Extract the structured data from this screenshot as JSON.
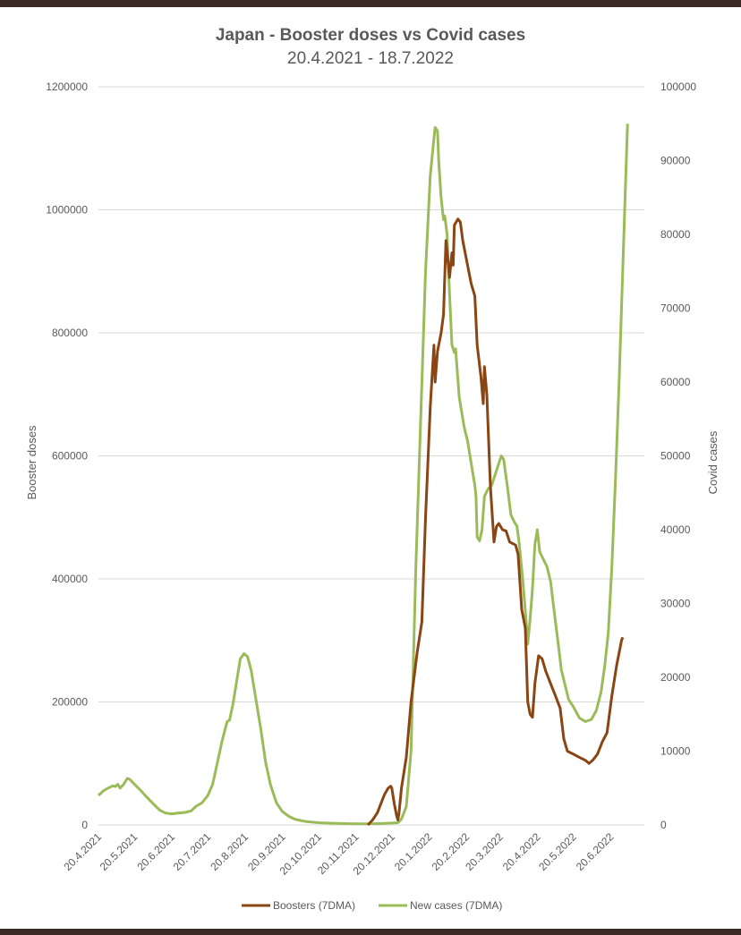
{
  "chart_data": {
    "type": "line",
    "title": "Japan - Booster doses vs Covid cases",
    "subtitle": "20.4.2021 - 18.7.2022",
    "ylabel": "Booster doses",
    "y2label": "Covid cases",
    "ylim": [
      0,
      1200000
    ],
    "y2lim": [
      0,
      100000
    ],
    "yticks": [
      "0",
      "200000",
      "400000",
      "600000",
      "800000",
      "1000000",
      "1200000"
    ],
    "y2ticks": [
      "0",
      "10000",
      "20000",
      "30000",
      "40000",
      "50000",
      "60000",
      "70000",
      "80000",
      "90000",
      "100000"
    ],
    "xlim": [
      "2021-04-20",
      "2022-07-18"
    ],
    "xticks": [
      "20.4.2021",
      "20.5.2021",
      "20.6.2021",
      "20.7.2021",
      "20.8.2021",
      "20.9.2021",
      "20.10.2021",
      "20.11.2021",
      "20.12.2021",
      "20.1.2022",
      "20.2.2022",
      "20.3.2022",
      "20.4.2022",
      "20.5.2022",
      "20.6.2022"
    ],
    "xtick_dates": [
      "2021-04-20",
      "2021-05-20",
      "2021-06-20",
      "2021-07-20",
      "2021-08-20",
      "2021-09-20",
      "2021-10-20",
      "2021-11-20",
      "2021-12-20",
      "2022-01-20",
      "2022-02-20",
      "2022-03-20",
      "2022-04-20",
      "2022-05-20",
      "2022-06-20"
    ],
    "grid": true,
    "legend_position": "bottom",
    "series": [
      {
        "name": "Boosters (7DMA)",
        "axis": "left",
        "color": "#8B4513",
        "points": [
          [
            "2021-11-30",
            0
          ],
          [
            "2021-12-04",
            8000
          ],
          [
            "2021-12-08",
            20000
          ],
          [
            "2021-12-11",
            35000
          ],
          [
            "2021-12-14",
            50000
          ],
          [
            "2021-12-17",
            60000
          ],
          [
            "2021-12-19",
            63000
          ],
          [
            "2021-12-20",
            60000
          ],
          [
            "2021-12-22",
            35000
          ],
          [
            "2021-12-24",
            15000
          ],
          [
            "2021-12-25",
            8000
          ],
          [
            "2021-12-26",
            20000
          ],
          [
            "2021-12-28",
            60000
          ],
          [
            "2022-01-01",
            110000
          ],
          [
            "2022-01-05",
            200000
          ],
          [
            "2022-01-10",
            280000
          ],
          [
            "2022-01-14",
            330000
          ],
          [
            "2022-01-17",
            500000
          ],
          [
            "2022-01-21",
            680000
          ],
          [
            "2022-01-24",
            780000
          ],
          [
            "2022-01-25",
            720000
          ],
          [
            "2022-01-27",
            770000
          ],
          [
            "2022-01-30",
            800000
          ],
          [
            "2022-02-01",
            830000
          ],
          [
            "2022-02-03",
            950000
          ],
          [
            "2022-02-06",
            890000
          ],
          [
            "2022-02-08",
            930000
          ],
          [
            "2022-02-09",
            910000
          ],
          [
            "2022-02-10",
            975000
          ],
          [
            "2022-02-13",
            985000
          ],
          [
            "2022-02-15",
            980000
          ],
          [
            "2022-02-17",
            950000
          ],
          [
            "2022-02-20",
            920000
          ],
          [
            "2022-02-24",
            880000
          ],
          [
            "2022-02-27",
            860000
          ],
          [
            "2022-03-01",
            780000
          ],
          [
            "2022-03-04",
            730000
          ],
          [
            "2022-03-06",
            685000
          ],
          [
            "2022-03-07",
            745000
          ],
          [
            "2022-03-09",
            700000
          ],
          [
            "2022-03-12",
            550000
          ],
          [
            "2022-03-15",
            460000
          ],
          [
            "2022-03-17",
            485000
          ],
          [
            "2022-03-19",
            490000
          ],
          [
            "2022-03-22",
            480000
          ],
          [
            "2022-03-25",
            478000
          ],
          [
            "2022-03-28",
            460000
          ],
          [
            "2022-04-02",
            455000
          ],
          [
            "2022-04-04",
            440000
          ],
          [
            "2022-04-07",
            350000
          ],
          [
            "2022-04-10",
            320000
          ],
          [
            "2022-04-12",
            200000
          ],
          [
            "2022-04-13",
            190000
          ],
          [
            "2022-04-14",
            180000
          ],
          [
            "2022-04-16",
            175000
          ],
          [
            "2022-04-18",
            230000
          ],
          [
            "2022-04-21",
            275000
          ],
          [
            "2022-04-24",
            270000
          ],
          [
            "2022-04-27",
            250000
          ],
          [
            "2022-05-01",
            230000
          ],
          [
            "2022-05-05",
            210000
          ],
          [
            "2022-05-09",
            190000
          ],
          [
            "2022-05-12",
            140000
          ],
          [
            "2022-05-15",
            120000
          ],
          [
            "2022-05-20",
            115000
          ],
          [
            "2022-05-25",
            110000
          ],
          [
            "2022-05-30",
            105000
          ],
          [
            "2022-06-02",
            100000
          ],
          [
            "2022-06-05",
            105000
          ],
          [
            "2022-06-09",
            115000
          ],
          [
            "2022-06-13",
            135000
          ],
          [
            "2022-06-17",
            150000
          ],
          [
            "2022-06-21",
            210000
          ],
          [
            "2022-06-25",
            260000
          ],
          [
            "2022-06-29",
            300000
          ],
          [
            "2022-06-30",
            305000
          ]
        ]
      },
      {
        "name": "New cases (7DMA)",
        "axis": "right",
        "color": "#9BBB59",
        "points": [
          [
            "2021-04-20",
            4000
          ],
          [
            "2021-04-24",
            4600
          ],
          [
            "2021-04-28",
            5000
          ],
          [
            "2021-05-02",
            5300
          ],
          [
            "2021-05-04",
            5200
          ],
          [
            "2021-05-06",
            5500
          ],
          [
            "2021-05-08",
            5000
          ],
          [
            "2021-05-11",
            5500
          ],
          [
            "2021-05-14",
            6300
          ],
          [
            "2021-05-16",
            6200
          ],
          [
            "2021-05-20",
            5500
          ],
          [
            "2021-05-25",
            4700
          ],
          [
            "2021-05-30",
            3800
          ],
          [
            "2021-06-05",
            2800
          ],
          [
            "2021-06-10",
            2000
          ],
          [
            "2021-06-15",
            1600
          ],
          [
            "2021-06-20",
            1500
          ],
          [
            "2021-06-25",
            1600
          ],
          [
            "2021-07-01",
            1700
          ],
          [
            "2021-07-06",
            1900
          ],
          [
            "2021-07-10",
            2500
          ],
          [
            "2021-07-15",
            3000
          ],
          [
            "2021-07-20",
            4000
          ],
          [
            "2021-07-24",
            5500
          ],
          [
            "2021-07-28",
            8500
          ],
          [
            "2021-08-01",
            11500
          ],
          [
            "2021-08-05",
            14000
          ],
          [
            "2021-08-07",
            14200
          ],
          [
            "2021-08-10",
            16500
          ],
          [
            "2021-08-13",
            19500
          ],
          [
            "2021-08-16",
            22500
          ],
          [
            "2021-08-19",
            23200
          ],
          [
            "2021-08-22",
            22800
          ],
          [
            "2021-08-25",
            21000
          ],
          [
            "2021-08-29",
            17000
          ],
          [
            "2021-09-02",
            13000
          ],
          [
            "2021-09-06",
            8500
          ],
          [
            "2021-09-10",
            5500
          ],
          [
            "2021-09-15",
            3000
          ],
          [
            "2021-09-20",
            1800
          ],
          [
            "2021-09-25",
            1200
          ],
          [
            "2021-09-30",
            800
          ],
          [
            "2021-10-05",
            600
          ],
          [
            "2021-10-10",
            450
          ],
          [
            "2021-10-20",
            300
          ],
          [
            "2021-11-01",
            230
          ],
          [
            "2021-11-10",
            180
          ],
          [
            "2021-11-20",
            150
          ],
          [
            "2021-12-01",
            140
          ],
          [
            "2021-12-10",
            180
          ],
          [
            "2021-12-20",
            250
          ],
          [
            "2021-12-25",
            300
          ],
          [
            "2021-12-28",
            800
          ],
          [
            "2022-01-01",
            2500
          ],
          [
            "2022-01-05",
            10000
          ],
          [
            "2022-01-09",
            35000
          ],
          [
            "2022-01-13",
            55000
          ],
          [
            "2022-01-17",
            75000
          ],
          [
            "2022-01-21",
            88000
          ],
          [
            "2022-01-24",
            93000
          ],
          [
            "2022-01-25",
            94500
          ],
          [
            "2022-01-27",
            94000
          ],
          [
            "2022-01-28",
            90000
          ],
          [
            "2022-01-30",
            85000
          ],
          [
            "2022-02-01",
            82000
          ],
          [
            "2022-02-02",
            82500
          ],
          [
            "2022-02-04",
            80000
          ],
          [
            "2022-02-06",
            72000
          ],
          [
            "2022-02-08",
            65000
          ],
          [
            "2022-02-10",
            64000
          ],
          [
            "2022-02-11",
            64500
          ],
          [
            "2022-02-14",
            58000
          ],
          [
            "2022-02-18",
            54000
          ],
          [
            "2022-02-21",
            52000
          ],
          [
            "2022-02-24",
            49000
          ],
          [
            "2022-02-27",
            46000
          ],
          [
            "2022-02-28",
            44500
          ],
          [
            "2022-03-01",
            39000
          ],
          [
            "2022-03-03",
            38500
          ],
          [
            "2022-03-05",
            40000
          ],
          [
            "2022-03-07",
            44500
          ],
          [
            "2022-03-10",
            45500
          ],
          [
            "2022-03-13",
            46000
          ],
          [
            "2022-03-16",
            47500
          ],
          [
            "2022-03-19",
            49000
          ],
          [
            "2022-03-21",
            50000
          ],
          [
            "2022-03-23",
            49500
          ],
          [
            "2022-03-26",
            46000
          ],
          [
            "2022-03-29",
            42000
          ],
          [
            "2022-04-01",
            41000
          ],
          [
            "2022-04-03",
            40500
          ],
          [
            "2022-04-05",
            38000
          ],
          [
            "2022-04-08",
            33000
          ],
          [
            "2022-04-11",
            27000
          ],
          [
            "2022-04-12",
            24500
          ],
          [
            "2022-04-14",
            28000
          ],
          [
            "2022-04-16",
            32000
          ],
          [
            "2022-04-18",
            38000
          ],
          [
            "2022-04-20",
            40000
          ],
          [
            "2022-04-22",
            37000
          ],
          [
            "2022-04-25",
            36000
          ],
          [
            "2022-04-28",
            35000
          ],
          [
            "2022-05-01",
            33000
          ],
          [
            "2022-05-04",
            29000
          ],
          [
            "2022-05-07",
            25000
          ],
          [
            "2022-05-10",
            21000
          ],
          [
            "2022-05-13",
            19000
          ],
          [
            "2022-05-16",
            17000
          ],
          [
            "2022-05-20",
            16000
          ],
          [
            "2022-05-25",
            14500
          ],
          [
            "2022-05-30",
            14000
          ],
          [
            "2022-06-04",
            14300
          ],
          [
            "2022-06-08",
            15500
          ],
          [
            "2022-06-12",
            18000
          ],
          [
            "2022-06-15",
            21500
          ],
          [
            "2022-06-18",
            26000
          ],
          [
            "2022-06-21",
            35000
          ],
          [
            "2022-06-24",
            47000
          ],
          [
            "2022-06-27",
            60000
          ],
          [
            "2022-06-30",
            75000
          ],
          [
            "2022-07-02",
            85000
          ],
          [
            "2022-07-04",
            95000
          ]
        ]
      }
    ]
  }
}
